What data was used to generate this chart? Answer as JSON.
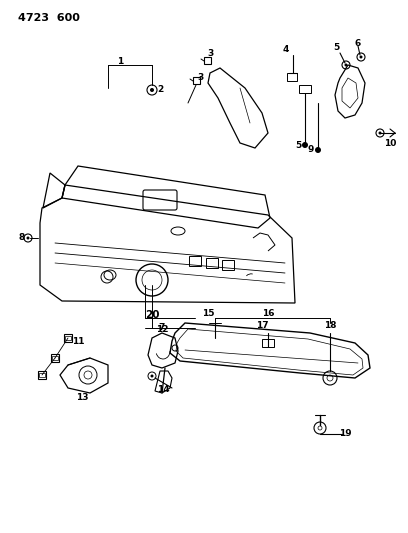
{
  "title": "4723  600",
  "bg_color": "#ffffff",
  "line_color": "#000000",
  "fig_width": 4.08,
  "fig_height": 5.33,
  "dpi": 100
}
